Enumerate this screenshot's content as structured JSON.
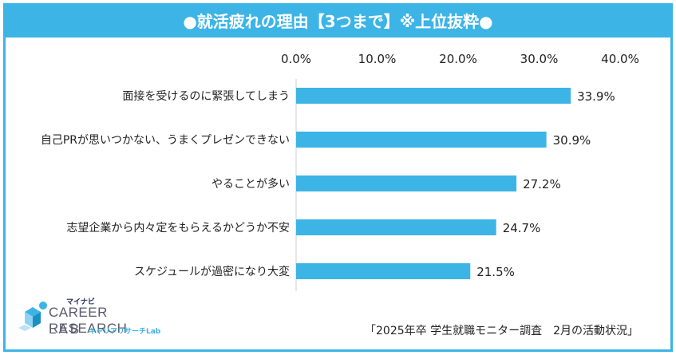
{
  "title": "●就活疲れの理由【3つまで】※上位抜粋●",
  "chart_data": {
    "type": "bar",
    "orientation": "horizontal",
    "categories": [
      "面接を受けるのに緊張してしまう",
      "自己PRが思いつかない、うまくプレゼンできない",
      "やることが多い",
      "志望企業から内々定をもらえるかどうか不安",
      "スケジュールが過密になり大変"
    ],
    "values": [
      33.9,
      30.9,
      27.2,
      24.7,
      21.5
    ],
    "value_labels": [
      "33.9%",
      "30.9%",
      "27.2%",
      "24.7%",
      "21.5%"
    ],
    "ticks": [
      0,
      10,
      20,
      30,
      40
    ],
    "tick_labels": [
      "0.0%",
      "10.0%",
      "20.0%",
      "30.0%",
      "40.0%"
    ],
    "xlim": [
      0,
      40
    ],
    "axis_position": "top",
    "grid": false,
    "bar_color": "#3cb4e6"
  },
  "logo": {
    "top": "マイナビ",
    "main": "CAREER RESEARCH",
    "lab": "LAB",
    "sub": "キャリアリサーチLab"
  },
  "source": "「2025年卒 学生就職モニター調査　2月の活動状況」"
}
